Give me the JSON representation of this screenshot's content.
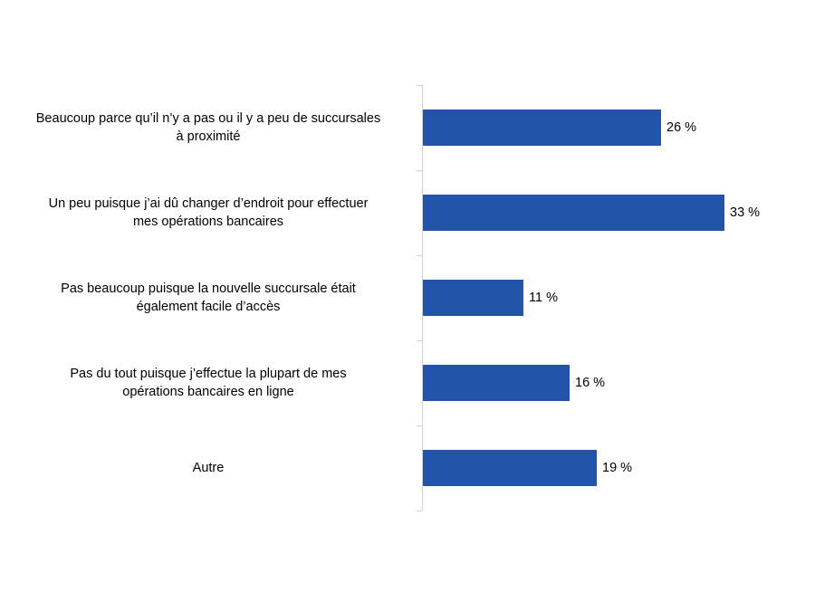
{
  "chart_data": {
    "type": "bar",
    "orientation": "horizontal",
    "title": "",
    "xlabel": "",
    "ylabel": "",
    "categories": [
      "Beaucoup parce qu’il n’y a pas ou il y a peu de succursales à proximité",
      "Un peu puisque j’ai dû changer d’endroit pour effectuer mes opérations bancaires",
      "Pas beaucoup puisque la nouvelle succursale était également facile d’accès",
      "Pas du tout puisque j’effectue la plupart de mes opérations bancaires en ligne",
      "Autre"
    ],
    "values": [
      26,
      33,
      11,
      16,
      19
    ],
    "value_labels": [
      "26 %",
      "33 %",
      "11 %",
      "16 %",
      "19 %"
    ],
    "xlim": [
      0,
      40
    ],
    "grid": false,
    "legend": null,
    "bar_color": "#2255A9"
  },
  "labels": [
    {
      "line1": "Beaucoup parce qu’il n’y a pas ou il y a peu de succursales",
      "line2": "à proximité"
    },
    {
      "line1": "Un peu puisque j’ai dû changer d’endroit pour effectuer",
      "line2": "mes opérations bancaires"
    },
    {
      "line1": "Pas beaucoup puisque la nouvelle succursale était",
      "line2": "également facile d’accès"
    },
    {
      "line1": "Pas du tout puisque j’effectue la plupart de mes",
      "line2": "opérations bancaires en ligne"
    },
    {
      "line1": "Autre",
      "line2": ""
    }
  ],
  "colors": {
    "bar": "#2255A9",
    "axis": "#d0d0d0",
    "text": "#000000"
  }
}
